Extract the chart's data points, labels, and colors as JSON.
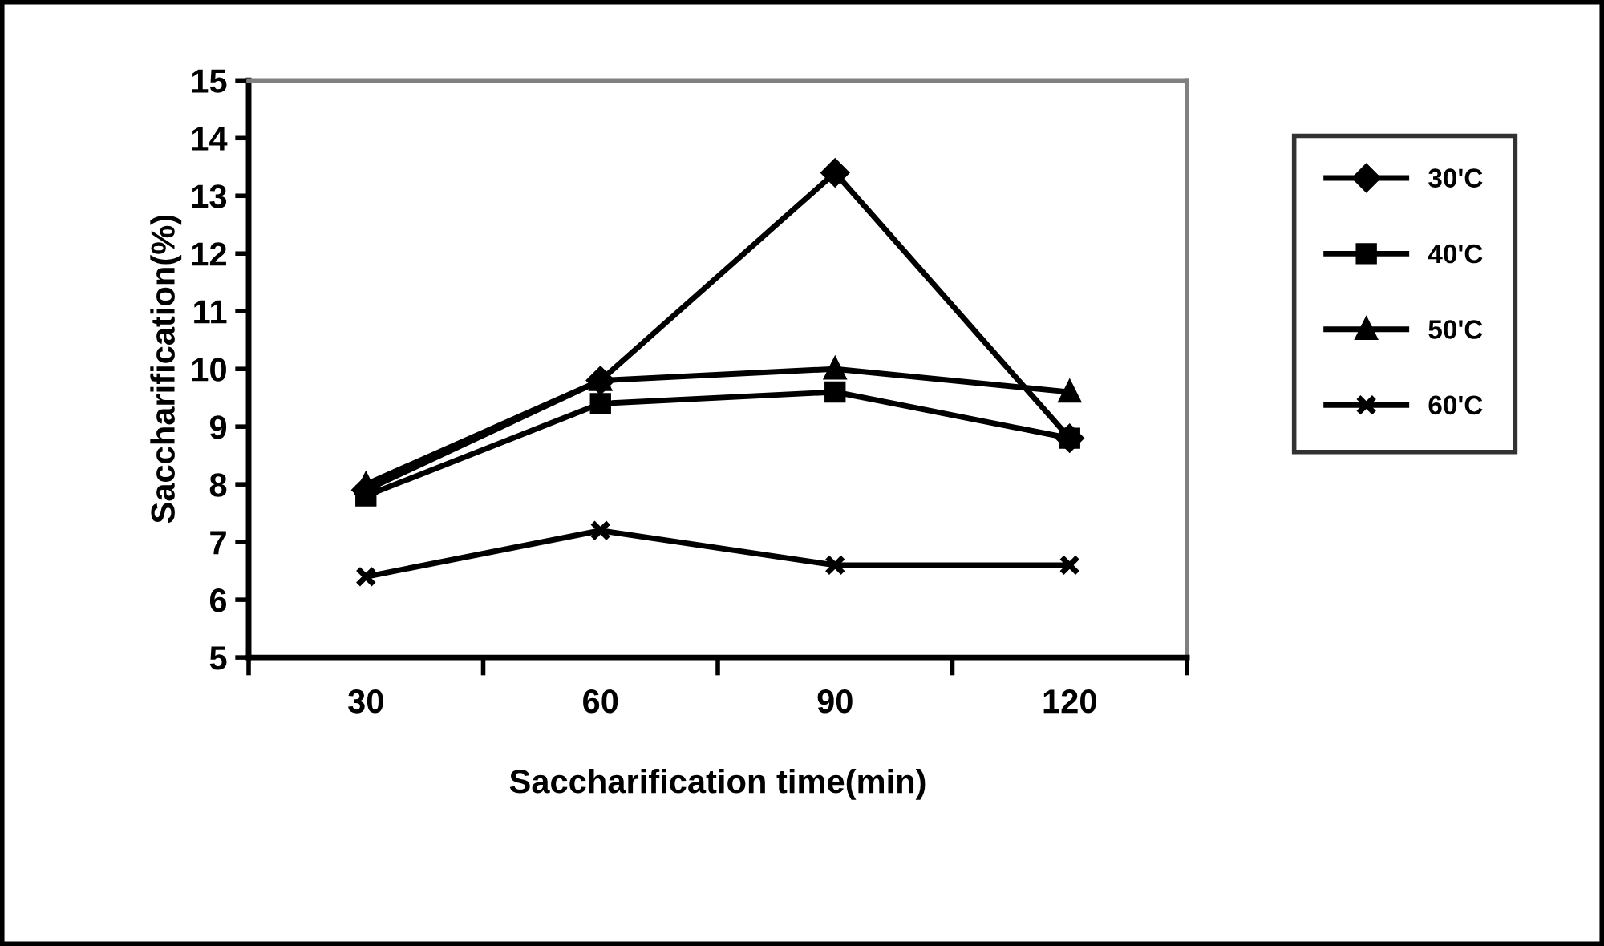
{
  "chart_data": {
    "type": "line",
    "xlabel": "Saccharification time(min)",
    "ylabel": "Saccharification(%)",
    "categories": [
      "30",
      "60",
      "90",
      "120"
    ],
    "ylim": [
      5,
      15
    ],
    "yticks": [
      5,
      6,
      7,
      8,
      9,
      10,
      11,
      12,
      13,
      14,
      15
    ],
    "grid": false,
    "legend": "right",
    "line_style": "solid",
    "series": [
      {
        "name": "30'C",
        "color": "#000000",
        "marker": "diamond",
        "values": [
          7.9,
          9.8,
          13.4,
          8.8
        ]
      },
      {
        "name": "40'C",
        "color": "#000000",
        "marker": "square",
        "values": [
          7.8,
          9.4,
          9.6,
          8.8
        ]
      },
      {
        "name": "50'C",
        "color": "#000000",
        "marker": "triangle",
        "values": [
          8.0,
          9.8,
          10.0,
          9.6
        ]
      },
      {
        "name": "60'C",
        "color": "#000000",
        "marker": "cross",
        "values": [
          6.4,
          7.2,
          6.6,
          6.6
        ]
      }
    ]
  }
}
